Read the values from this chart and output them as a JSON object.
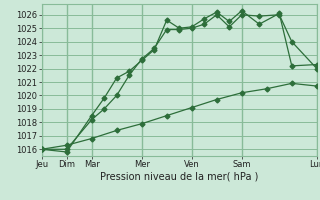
{
  "bg_color": "#cce8d8",
  "grid_color": "#88bb99",
  "line_color": "#2d6e3a",
  "xlabel": "Pression niveau de la mer( hPa )",
  "ylim": [
    1015.5,
    1026.8
  ],
  "xlim": [
    0,
    11
  ],
  "ytick_vals": [
    1016,
    1017,
    1018,
    1019,
    1020,
    1021,
    1022,
    1023,
    1024,
    1025,
    1026
  ],
  "day_tick_positions": [
    0,
    1,
    2,
    4,
    6,
    8,
    11
  ],
  "day_tick_labels": [
    "Jeu",
    "Dim",
    "Mar",
    "Mer",
    "Ven",
    "Sam",
    "Lun"
  ],
  "line1_x": [
    0,
    1,
    2,
    2.5,
    3,
    3.5,
    4,
    4.5,
    5,
    5.5,
    6,
    6.5,
    7,
    7.5,
    8,
    8.7,
    9.5,
    10,
    11
  ],
  "line1_y": [
    1016.0,
    1016.0,
    1018.2,
    1019.0,
    1020.0,
    1021.5,
    1022.7,
    1023.5,
    1024.9,
    1024.9,
    1025.0,
    1025.3,
    1026.0,
    1025.1,
    1026.0,
    1025.9,
    1026.0,
    1024.0,
    1022.0
  ],
  "line2_x": [
    0,
    1,
    2,
    2.5,
    3,
    3.5,
    4,
    4.5,
    5,
    5.5,
    6,
    6.5,
    7,
    7.5,
    8,
    8.7,
    9.5,
    10,
    11
  ],
  "line2_y": [
    1016.0,
    1015.8,
    1018.5,
    1019.8,
    1021.3,
    1021.8,
    1022.6,
    1023.4,
    1025.6,
    1025.0,
    1025.1,
    1025.7,
    1026.2,
    1025.5,
    1026.3,
    1025.3,
    1026.1,
    1022.2,
    1022.3
  ],
  "line3_x": [
    0,
    1,
    2,
    3,
    4,
    5,
    6,
    7,
    8,
    9,
    10,
    11
  ],
  "line3_y": [
    1016.0,
    1016.3,
    1016.8,
    1017.4,
    1017.9,
    1018.5,
    1019.1,
    1019.7,
    1020.2,
    1020.5,
    1020.9,
    1020.7
  ],
  "marker": "D",
  "marker_size": 2.5,
  "linewidth": 0.9
}
